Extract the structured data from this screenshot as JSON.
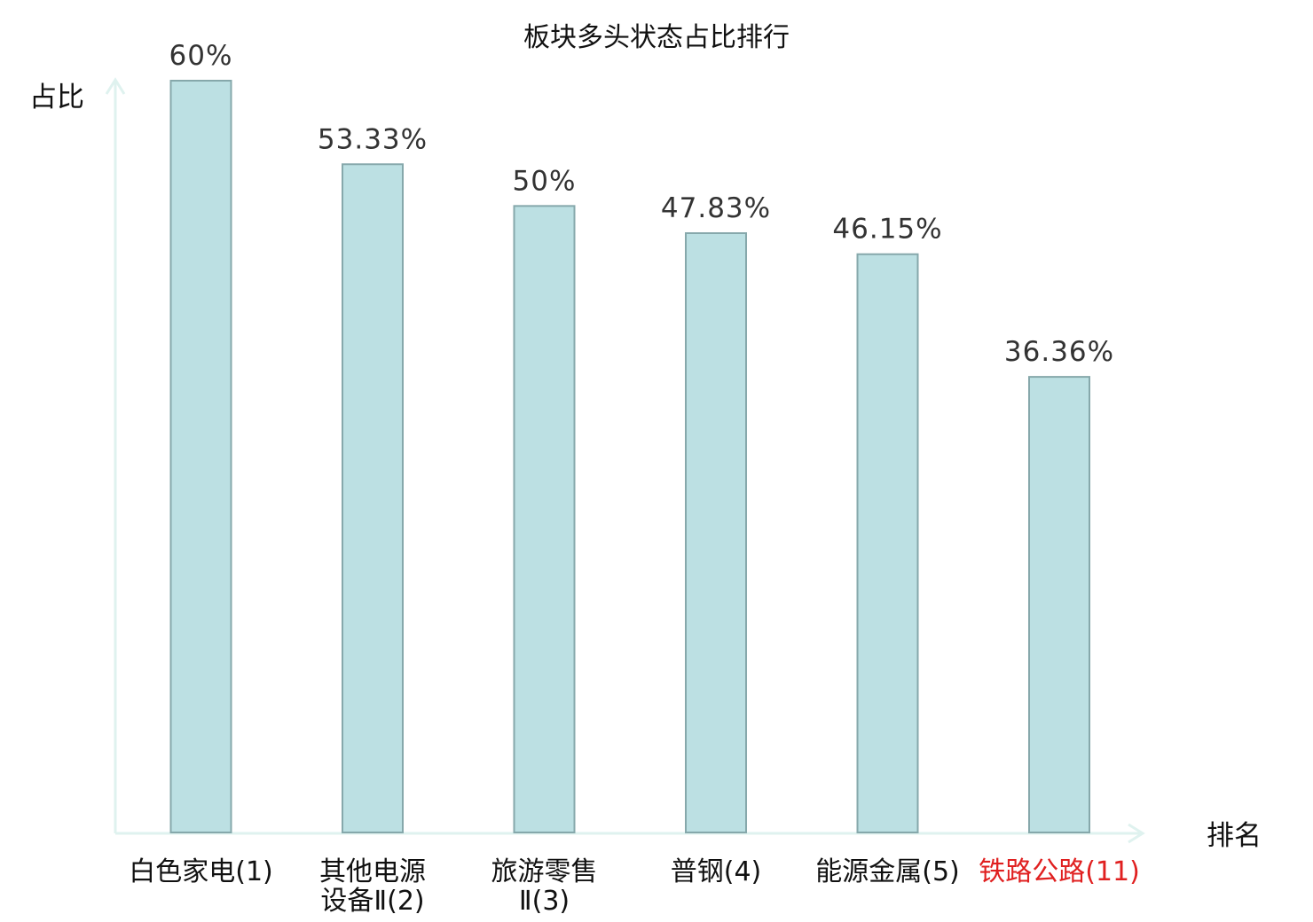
{
  "chart_data": {
    "type": "bar",
    "title": "板块多头状态占比排行",
    "ylabel": "占比",
    "xlabel": "排名",
    "ylim": [
      0,
      60
    ],
    "grid": false,
    "categories": [
      {
        "lines": [
          "白色家电(1)"
        ],
        "highlight": false
      },
      {
        "lines": [
          "其他电源",
          "设备Ⅱ(2)"
        ],
        "highlight": false
      },
      {
        "lines": [
          "旅游零售",
          "Ⅱ(3)"
        ],
        "highlight": false
      },
      {
        "lines": [
          "普钢(4)"
        ],
        "highlight": false
      },
      {
        "lines": [
          "能源金属(5)"
        ],
        "highlight": false
      },
      {
        "lines": [
          "铁路公路(11)"
        ],
        "highlight": true
      }
    ],
    "values": [
      60,
      53.33,
      50,
      47.83,
      46.15,
      36.36
    ],
    "value_labels": [
      "60%",
      "53.33%",
      "50%",
      "47.83%",
      "46.15%",
      "36.36%"
    ],
    "colors": {
      "bar_fill": "#bce0e3",
      "bar_stroke": "#86a8ab",
      "axis": "#dff2ef",
      "highlight_label": "#e02020"
    }
  }
}
